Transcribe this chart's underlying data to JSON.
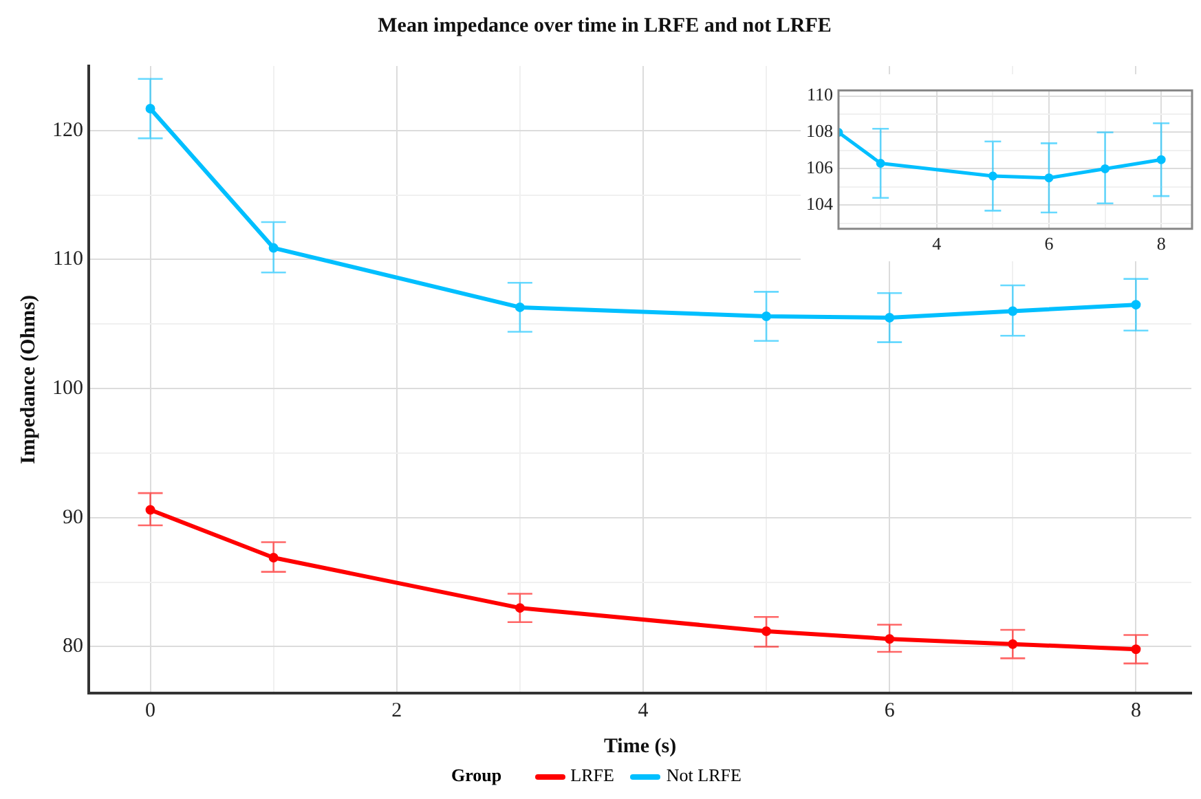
{
  "chart_data": [
    {
      "type": "line",
      "title": "Mean impedance over time in LRFE and not LRFE",
      "xlabel": "Time (s)",
      "ylabel": "Impedance (Ohms)",
      "legend_title": "Group",
      "legend": "bottom",
      "grid": true,
      "marker": "circle",
      "x": [
        0,
        1,
        3,
        5,
        6,
        7,
        8
      ],
      "xlim": [
        -0.5,
        8.45
      ],
      "xticks": [
        0,
        {
          "value": 1,
          "label": null
        },
        2,
        {
          "value": 3,
          "label": null
        },
        4,
        {
          "value": 5,
          "label": null
        },
        6,
        {
          "value": 7,
          "label": null
        },
        8
      ],
      "ylim": [
        76.4,
        125
      ],
      "yticks": [
        80,
        {
          "value": 85,
          "label": null
        },
        90,
        {
          "value": 95,
          "label": null
        },
        100,
        {
          "value": 105,
          "label": null
        },
        110,
        {
          "value": 115,
          "label": null
        },
        120
      ],
      "series": [
        {
          "name": "LRFE",
          "color": "#ff0000",
          "values": [
            90.6,
            86.9,
            83.0,
            81.2,
            80.6,
            80.2,
            79.8
          ],
          "errors": [
            [
              89.4,
              91.9
            ],
            [
              85.8,
              88.1
            ],
            [
              81.9,
              84.1
            ],
            [
              80.0,
              82.3
            ],
            [
              79.6,
              81.7
            ],
            [
              79.1,
              81.3
            ],
            [
              78.7,
              80.9
            ]
          ]
        },
        {
          "name": "Not LRFE",
          "color": "#00bfff",
          "values": [
            121.7,
            110.9,
            106.3,
            105.6,
            105.5,
            106.0,
            106.5
          ],
          "errors": [
            [
              119.4,
              124.0
            ],
            [
              109.0,
              112.9
            ],
            [
              104.4,
              108.2
            ],
            [
              103.7,
              107.5
            ],
            [
              103.6,
              107.4
            ],
            [
              104.1,
              108.0
            ],
            [
              104.5,
              108.5
            ]
          ]
        }
      ]
    },
    {
      "type": "line",
      "grid": true,
      "marker": "circle",
      "x": [
        2.25,
        3,
        5,
        6,
        7,
        8
      ],
      "xlim": [
        2.25,
        8.55
      ],
      "xticks": [
        {
          "value": 3,
          "label": null
        },
        4,
        {
          "value": 5,
          "label": null
        },
        6,
        {
          "value": 7,
          "label": null
        },
        8
      ],
      "ylim": [
        102.7,
        110.3
      ],
      "yticks": [
        {
          "value": 103,
          "label": null
        },
        104,
        {
          "value": 105,
          "label": null
        },
        106,
        {
          "value": 107,
          "label": null
        },
        108,
        {
          "value": 109,
          "label": null
        },
        110
      ],
      "series": [
        {
          "color": "#00bfff",
          "values": [
            108.0,
            106.3,
            105.6,
            105.5,
            106.0,
            106.5
          ],
          "errors": [
            null,
            [
              104.4,
              108.2
            ],
            [
              103.7,
              107.5
            ],
            [
              103.6,
              107.4
            ],
            [
              104.1,
              108.0
            ],
            [
              104.5,
              108.5
            ]
          ]
        }
      ]
    }
  ]
}
